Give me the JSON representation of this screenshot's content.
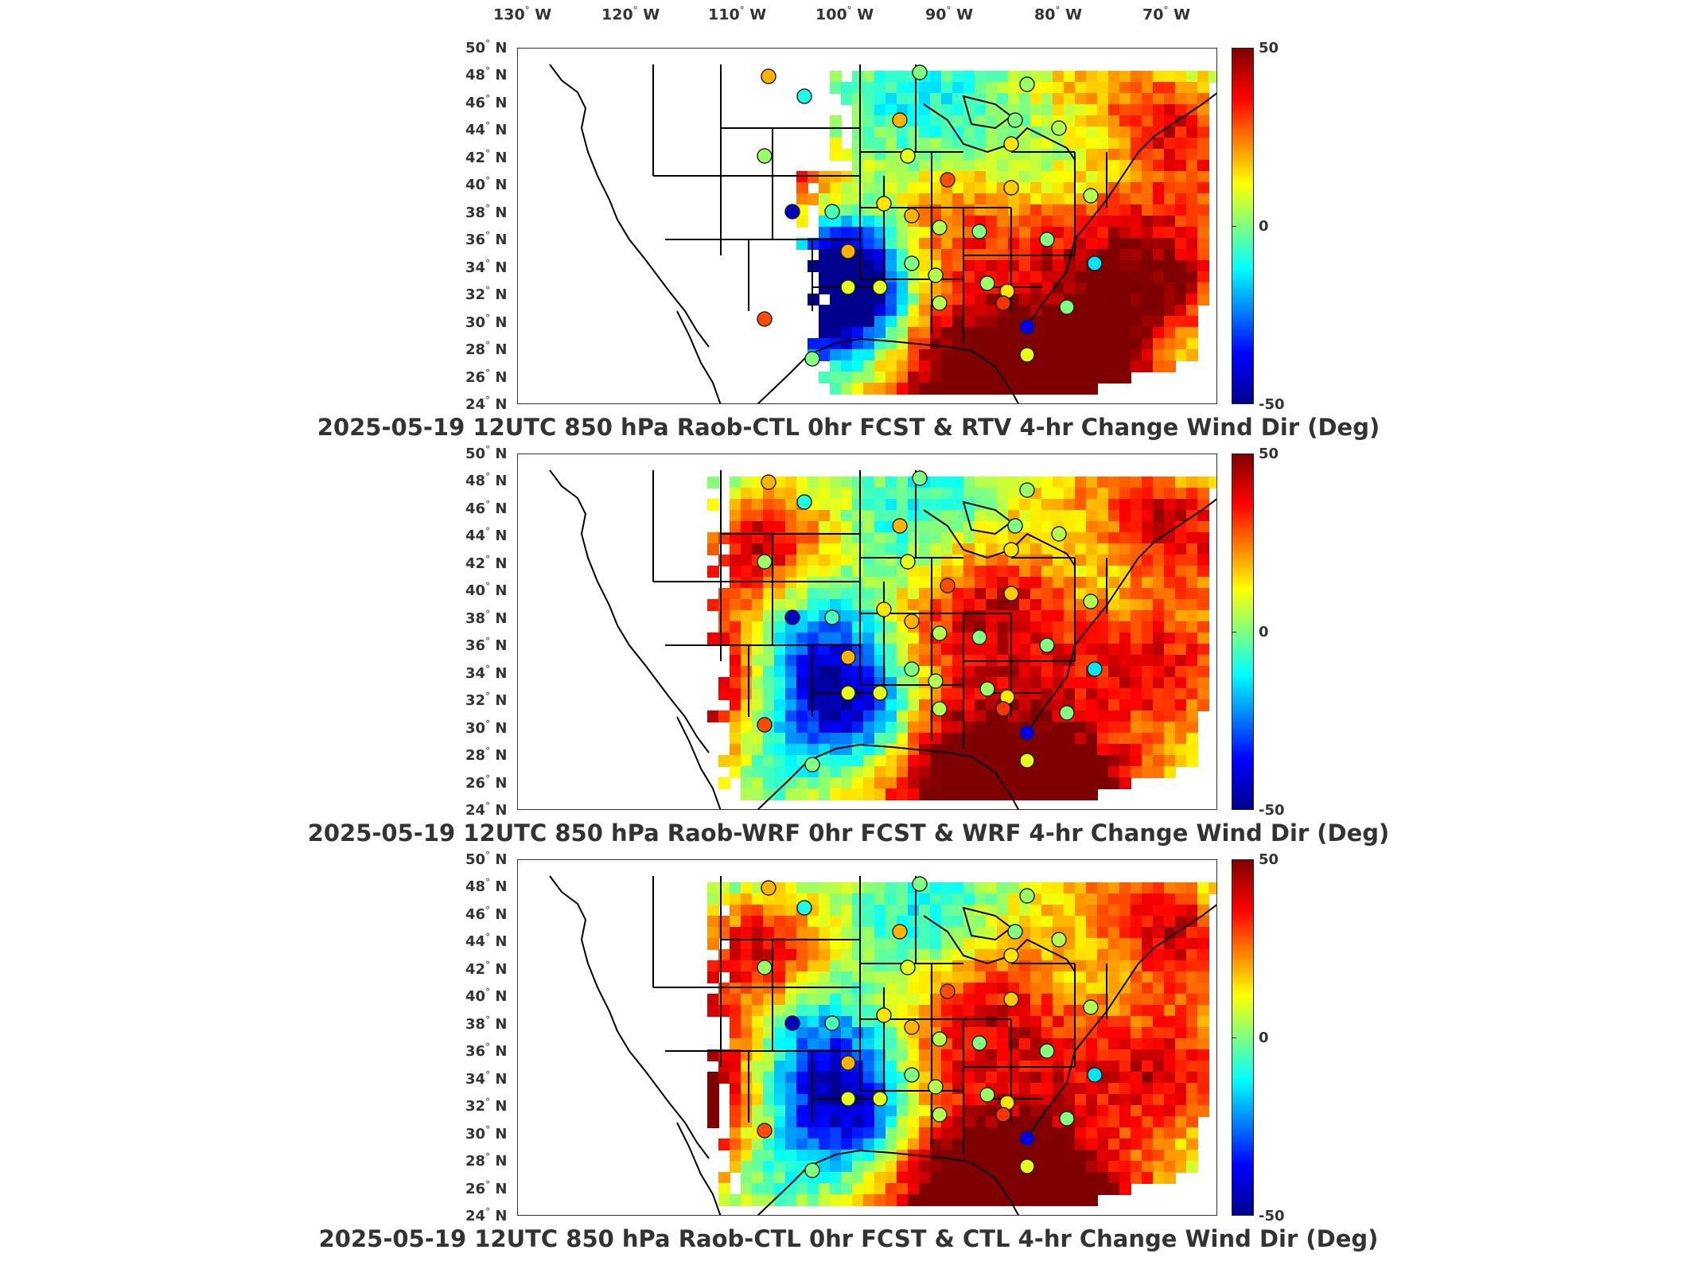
{
  "figure": {
    "longitude_labels": [
      {
        "deg": "130",
        "hemi": "W"
      },
      {
        "deg": "120",
        "hemi": "W"
      },
      {
        "deg": "110",
        "hemi": "W"
      },
      {
        "deg": "100",
        "hemi": "W"
      },
      {
        "deg": "90",
        "hemi": "W"
      },
      {
        "deg": "80",
        "hemi": "W"
      },
      {
        "deg": "70",
        "hemi": "W"
      }
    ],
    "latitude_labels": [
      {
        "deg": "50",
        "hemi": "N"
      },
      {
        "deg": "48",
        "hemi": "N"
      },
      {
        "deg": "46",
        "hemi": "N"
      },
      {
        "deg": "44",
        "hemi": "N"
      },
      {
        "deg": "42",
        "hemi": "N"
      },
      {
        "deg": "40",
        "hemi": "N"
      },
      {
        "deg": "38",
        "hemi": "N"
      },
      {
        "deg": "36",
        "hemi": "N"
      },
      {
        "deg": "34",
        "hemi": "N"
      },
      {
        "deg": "32",
        "hemi": "N"
      },
      {
        "deg": "30",
        "hemi": "N"
      },
      {
        "deg": "28",
        "hemi": "N"
      },
      {
        "deg": "26",
        "hemi": "N"
      },
      {
        "deg": "24",
        "hemi": "N"
      }
    ],
    "colorbar": {
      "ticks": [
        "50",
        "0",
        "-50"
      ],
      "colormap": [
        "#7f0000",
        "#ff0000",
        "#ff8000",
        "#ffff00",
        "#80ff80",
        "#00ffff",
        "#0080ff",
        "#0000ff",
        "#00008f"
      ]
    },
    "panels": [
      {
        "title": "2025-05-19 12UTC 850 hPa Raob-CTL 0hr FCST & RTV 4-hr Change Wind Dir (Deg)"
      },
      {
        "title": "2025-05-19 12UTC 850 hPa Raob-WRF 0hr FCST & WRF 4-hr Change Wind Dir (Deg)"
      },
      {
        "title": "2025-05-19 12UTC 850 hPa Raob-CTL 0hr FCST & CTL 4-hr Change Wind Dir (Deg)"
      }
    ]
  }
}
